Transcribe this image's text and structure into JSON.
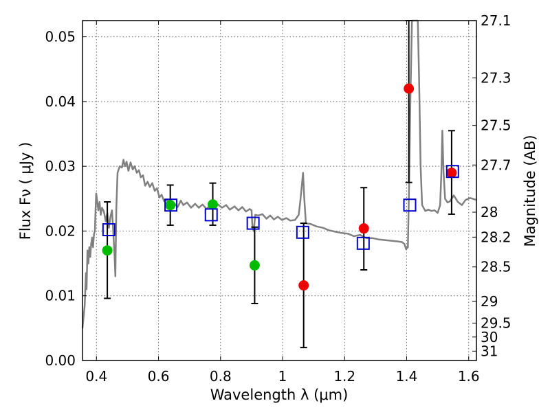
{
  "chart_data": {
    "type": "scatter",
    "title": "",
    "xlabel": "Wavelength  λ (μm)",
    "ylabel": "Flux  Fν  ( μJy )",
    "y2label": "Magnitude (AB)",
    "xlim": [
      0.355,
      1.625
    ],
    "ylim": [
      0.0,
      0.0525
    ],
    "grid": true,
    "x_ticks": [
      0.4,
      0.6,
      0.8,
      1.0,
      1.2,
      1.4,
      1.6
    ],
    "x_tick_labels": [
      "0.4",
      "0.6",
      "0.8",
      "1",
      "1.2",
      "1.4",
      "1.6"
    ],
    "y_ticks": [
      0.0,
      0.01,
      0.02,
      0.03,
      0.04,
      0.05
    ],
    "y_tick_labels": [
      "0.00",
      "0.01",
      "0.02",
      "0.03",
      "0.04",
      "0.05"
    ],
    "y2_ticks": [
      27.1,
      27.3,
      27.5,
      27.7,
      28,
      28.2,
      28.5,
      29,
      29.5,
      30,
      31
    ],
    "y2_tick_labels": [
      "27.1",
      "27.3",
      "27.5",
      "27.7",
      "28",
      "28.2",
      "28.5",
      "29",
      "29.5",
      "30",
      "31"
    ],
    "colors": {
      "model": "#808080",
      "green": "#00bb00",
      "red": "#ee0000",
      "square": "#0000cc",
      "errorbar": "#000000",
      "grid": "#666666"
    },
    "series": [
      {
        "marker": "circle",
        "color": "#00bb00",
        "points": [
          {
            "x": 0.435,
            "y": 0.017
          },
          {
            "x": 0.638,
            "y": 0.024
          },
          {
            "x": 0.775,
            "y": 0.0241
          },
          {
            "x": 0.91,
            "y": 0.0147
          }
        ]
      },
      {
        "marker": "circle",
        "color": "#ee0000",
        "points": [
          {
            "x": 1.068,
            "y": 0.0116
          },
          {
            "x": 1.262,
            "y": 0.0204
          },
          {
            "x": 1.407,
            "y": 0.042
          },
          {
            "x": 1.545,
            "y": 0.029
          }
        ]
      },
      {
        "marker": "square",
        "color": "#0000cc",
        "points": [
          {
            "x": 0.44,
            "y": 0.0202
          },
          {
            "x": 0.64,
            "y": 0.024
          },
          {
            "x": 0.77,
            "y": 0.0225
          },
          {
            "x": 0.905,
            "y": 0.0212
          },
          {
            "x": 1.065,
            "y": 0.0198
          },
          {
            "x": 1.26,
            "y": 0.0181
          },
          {
            "x": 1.41,
            "y": 0.024
          },
          {
            "x": 1.548,
            "y": 0.0292
          }
        ]
      }
    ],
    "errorbars": [
      {
        "x": 0.435,
        "ylow": 0.0096,
        "yhigh": 0.0245
      },
      {
        "x": 0.638,
        "ylow": 0.0209,
        "yhigh": 0.0271
      },
      {
        "x": 0.775,
        "ylow": 0.0209,
        "yhigh": 0.0274
      },
      {
        "x": 0.91,
        "ylow": 0.0088,
        "yhigh": 0.0206
      },
      {
        "x": 1.068,
        "ylow": 0.002,
        "yhigh": 0.0212
      },
      {
        "x": 1.262,
        "ylow": 0.014,
        "yhigh": 0.0267
      },
      {
        "x": 1.407,
        "ylow": 0.0275,
        "yhigh": 0.0525
      },
      {
        "x": 1.545,
        "ylow": 0.0226,
        "yhigh": 0.0355
      }
    ],
    "model_spectrum": [
      [
        0.355,
        0.005
      ],
      [
        0.362,
        0.0085
      ],
      [
        0.366,
        0.0135
      ],
      [
        0.368,
        0.011
      ],
      [
        0.371,
        0.017
      ],
      [
        0.374,
        0.015
      ],
      [
        0.377,
        0.0175
      ],
      [
        0.38,
        0.016
      ],
      [
        0.383,
        0.018
      ],
      [
        0.386,
        0.019
      ],
      [
        0.389,
        0.0175
      ],
      [
        0.392,
        0.0195
      ],
      [
        0.395,
        0.02
      ],
      [
        0.397,
        0.023
      ],
      [
        0.399,
        0.0258
      ],
      [
        0.402,
        0.0248
      ],
      [
        0.406,
        0.0232
      ],
      [
        0.41,
        0.0245
      ],
      [
        0.414,
        0.0225
      ],
      [
        0.418,
        0.0236
      ],
      [
        0.424,
        0.023
      ],
      [
        0.43,
        0.0215
      ],
      [
        0.435,
        0.0228
      ],
      [
        0.44,
        0.0205
      ],
      [
        0.445,
        0.0222
      ],
      [
        0.45,
        0.0232
      ],
      [
        0.454,
        0.02
      ],
      [
        0.458,
        0.0165
      ],
      [
        0.461,
        0.013
      ],
      [
        0.464,
        0.0235
      ],
      [
        0.468,
        0.029
      ],
      [
        0.475,
        0.03
      ],
      [
        0.482,
        0.0298
      ],
      [
        0.487,
        0.031
      ],
      [
        0.492,
        0.03
      ],
      [
        0.497,
        0.0307
      ],
      [
        0.503,
        0.0293
      ],
      [
        0.51,
        0.0306
      ],
      [
        0.517,
        0.0295
      ],
      [
        0.523,
        0.03
      ],
      [
        0.53,
        0.029
      ],
      [
        0.537,
        0.0294
      ],
      [
        0.543,
        0.0283
      ],
      [
        0.55,
        0.0286
      ],
      [
        0.557,
        0.027
      ],
      [
        0.565,
        0.0276
      ],
      [
        0.572,
        0.0268
      ],
      [
        0.58,
        0.0274
      ],
      [
        0.588,
        0.0262
      ],
      [
        0.595,
        0.0266
      ],
      [
        0.603,
        0.0252
      ],
      [
        0.61,
        0.0256
      ],
      [
        0.618,
        0.0246
      ],
      [
        0.628,
        0.0248
      ],
      [
        0.638,
        0.024
      ],
      [
        0.65,
        0.0243
      ],
      [
        0.662,
        0.0237
      ],
      [
        0.672,
        0.0247
      ],
      [
        0.68,
        0.024
      ],
      [
        0.692,
        0.0244
      ],
      [
        0.705,
        0.0236
      ],
      [
        0.718,
        0.0242
      ],
      [
        0.73,
        0.0236
      ],
      [
        0.742,
        0.0241
      ],
      [
        0.755,
        0.0234
      ],
      [
        0.768,
        0.024
      ],
      [
        0.78,
        0.0236
      ],
      [
        0.792,
        0.0241
      ],
      [
        0.805,
        0.0236
      ],
      [
        0.818,
        0.024
      ],
      [
        0.83,
        0.0233
      ],
      [
        0.845,
        0.0238
      ],
      [
        0.858,
        0.0232
      ],
      [
        0.87,
        0.0237
      ],
      [
        0.882,
        0.023
      ],
      [
        0.894,
        0.0234
      ],
      [
        0.9,
        0.0232
      ],
      [
        0.903,
        0.0205
      ],
      [
        0.907,
        0.02
      ],
      [
        0.912,
        0.0225
      ],
      [
        0.922,
        0.0224
      ],
      [
        0.935,
        0.0226
      ],
      [
        0.948,
        0.0219
      ],
      [
        0.96,
        0.0224
      ],
      [
        0.972,
        0.0218
      ],
      [
        0.985,
        0.0222
      ],
      [
        0.998,
        0.0217
      ],
      [
        1.012,
        0.022
      ],
      [
        1.025,
        0.0216
      ],
      [
        1.04,
        0.0217
      ],
      [
        1.052,
        0.0225
      ],
      [
        1.058,
        0.025
      ],
      [
        1.062,
        0.027
      ],
      [
        1.066,
        0.029
      ],
      [
        1.07,
        0.025
      ],
      [
        1.075,
        0.0212
      ],
      [
        1.09,
        0.0211
      ],
      [
        1.11,
        0.0207
      ],
      [
        1.13,
        0.0205
      ],
      [
        1.15,
        0.0201
      ],
      [
        1.17,
        0.0199
      ],
      [
        1.19,
        0.0197
      ],
      [
        1.21,
        0.0196
      ],
      [
        1.23,
        0.0192
      ],
      [
        1.25,
        0.0194
      ],
      [
        1.27,
        0.0189
      ],
      [
        1.29,
        0.0189
      ],
      [
        1.31,
        0.0187
      ],
      [
        1.33,
        0.0186
      ],
      [
        1.35,
        0.0185
      ],
      [
        1.37,
        0.0184
      ],
      [
        1.385,
        0.0183
      ],
      [
        1.393,
        0.018
      ],
      [
        1.398,
        0.0172
      ],
      [
        1.404,
        0.0175
      ],
      [
        1.408,
        0.0275
      ],
      [
        1.412,
        0.04
      ],
      [
        1.417,
        0.0525
      ],
      [
        1.436,
        0.0525
      ],
      [
        1.44,
        0.044
      ],
      [
        1.445,
        0.03
      ],
      [
        1.45,
        0.024
      ],
      [
        1.46,
        0.0231
      ],
      [
        1.47,
        0.0233
      ],
      [
        1.48,
        0.0231
      ],
      [
        1.49,
        0.0232
      ],
      [
        1.5,
        0.0228
      ],
      [
        1.508,
        0.024
      ],
      [
        1.512,
        0.029
      ],
      [
        1.515,
        0.0355
      ],
      [
        1.519,
        0.029
      ],
      [
        1.524,
        0.025
      ],
      [
        1.532,
        0.0244
      ],
      [
        1.54,
        0.0246
      ],
      [
        1.552,
        0.0255
      ],
      [
        1.565,
        0.0245
      ],
      [
        1.578,
        0.024
      ],
      [
        1.59,
        0.0248
      ],
      [
        1.605,
        0.0251
      ],
      [
        1.625,
        0.0248
      ]
    ]
  }
}
